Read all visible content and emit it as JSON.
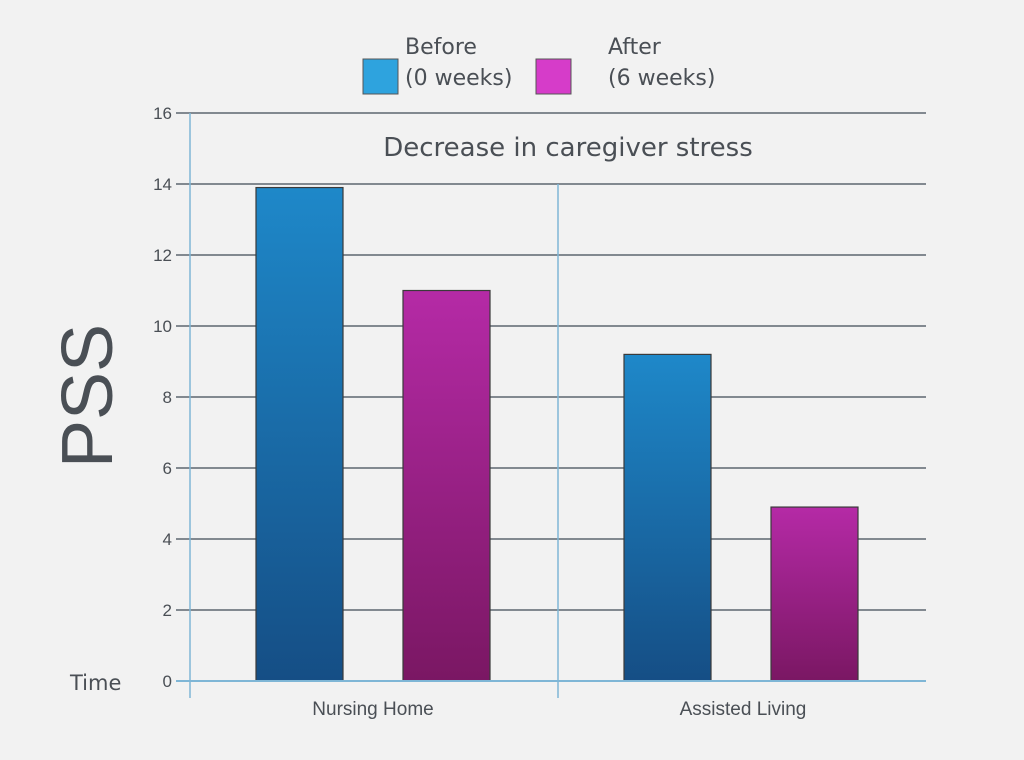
{
  "chart_data": {
    "type": "bar",
    "title": "Decrease in caregiver stress",
    "ylabel": "PSS",
    "xlabel": "Time",
    "categories": [
      "Nursing Home",
      "Assisted Living"
    ],
    "series": [
      {
        "name": "Before",
        "legend_line1": "Before",
        "legend_line2": "(0 weeks)",
        "values": [
          13.9,
          9.2
        ],
        "color": "#1e88c9",
        "color_dark": "#154e85",
        "legend_color": "#2ea3de"
      },
      {
        "name": "After",
        "legend_line1": "After",
        "legend_line2": "(6 weeks)",
        "values": [
          11.0,
          4.9
        ],
        "color": "#b52aa6",
        "color_dark": "#7a1763",
        "legend_color": "#d63cc9"
      }
    ],
    "ylim": [
      0,
      16
    ],
    "yticks": [
      0,
      2,
      4,
      6,
      8,
      10,
      12,
      14,
      16
    ],
    "grid": true,
    "legend_position": "top-center"
  }
}
